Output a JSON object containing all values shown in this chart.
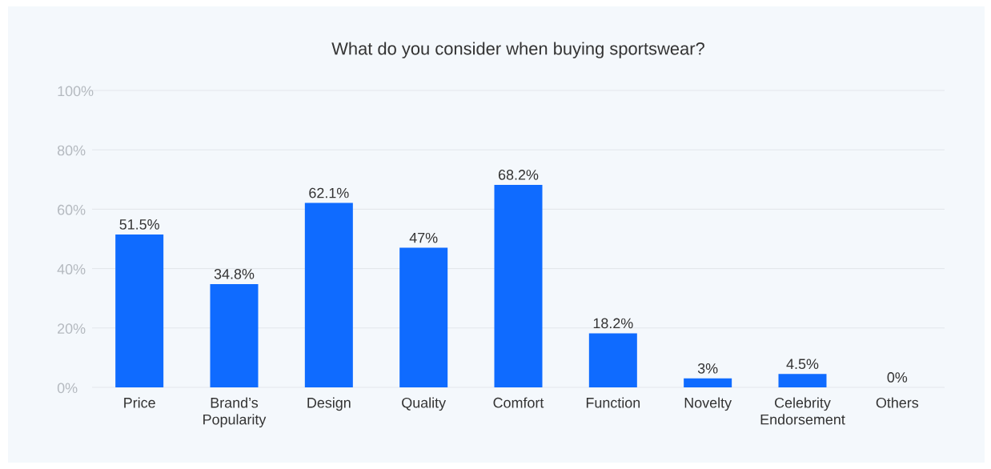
{
  "chart_data": {
    "type": "bar",
    "title": "What do you consider when buying sportswear?",
    "categories": [
      "Price",
      "Brand’s Popularity",
      "Design",
      "Quality",
      "Comfort",
      "Function",
      "Novelty",
      "Celebrity Endorsement",
      "Others"
    ],
    "values": [
      51.5,
      34.8,
      62.1,
      47,
      68.2,
      18.2,
      3,
      4.5,
      0
    ],
    "value_labels": [
      "51.5%",
      "34.8%",
      "62.1%",
      "47%",
      "68.2%",
      "18.2%",
      "3%",
      "4.5%",
      "0%"
    ],
    "color": "#0f6bff",
    "ylim": [
      0,
      100
    ],
    "yticks": [
      {
        "value": 0,
        "label": "0%"
      },
      {
        "value": 20,
        "label": "20%"
      },
      {
        "value": 40,
        "label": "40%"
      },
      {
        "value": 60,
        "label": "60%"
      },
      {
        "value": 80,
        "label": "80%"
      },
      {
        "value": 100,
        "label": "100%"
      }
    ],
    "grid": "y"
  }
}
